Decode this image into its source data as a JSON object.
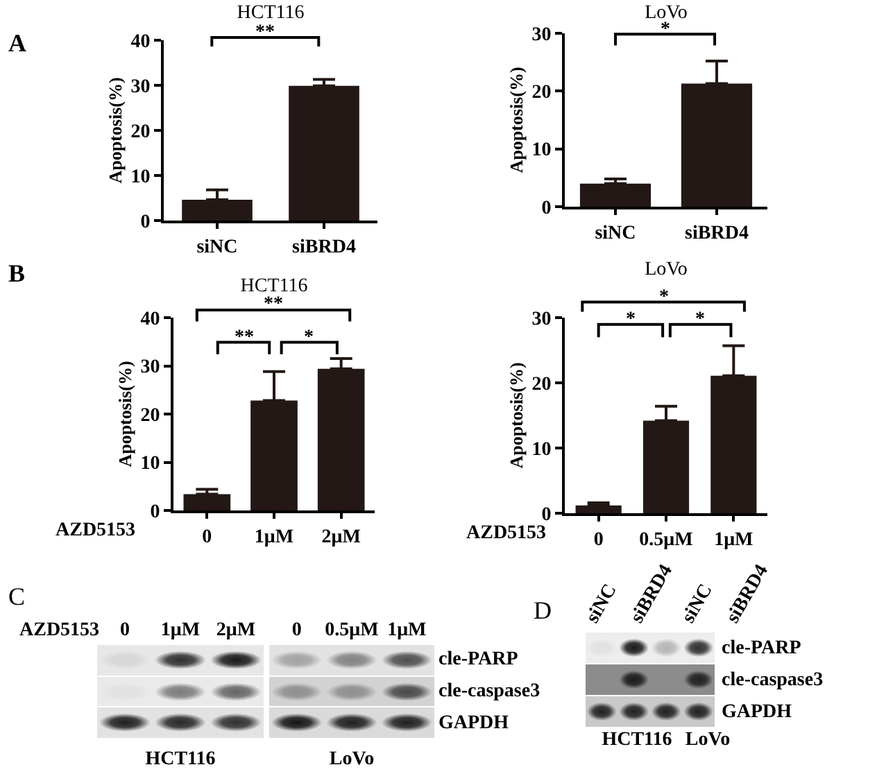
{
  "chart_data": [
    {
      "type": "bar",
      "title": "HCT116",
      "ylabel": "Apoptosis(%)",
      "categories": [
        "siNC",
        "siBRD4"
      ],
      "values": [
        4.6,
        29.9
      ],
      "errors": [
        [
          4.6,
          6.8
        ],
        [
          29.9,
          31.3
        ]
      ],
      "color": "#231815",
      "ylim": [
        0,
        40
      ],
      "yticks": [
        0,
        10,
        20,
        30,
        40
      ],
      "annotations": [
        "A",
        "**"
      ]
    },
    {
      "type": "bar",
      "title": "LoVo",
      "ylabel": "Apoptosis(%)",
      "categories": [
        "siNC",
        "siBRD4"
      ],
      "values": [
        4.0,
        21.3
      ],
      "errors": [
        [
          4.0,
          4.8
        ],
        [
          21.3,
          25.2
        ]
      ],
      "color": "#231815",
      "ylim": [
        0,
        30
      ],
      "yticks": [
        0,
        10,
        20,
        30
      ],
      "annotations": [
        "*"
      ]
    },
    {
      "type": "bar",
      "title": "HCT116",
      "xlabel": "AZD5153",
      "ylabel": "Apoptosis(%)",
      "categories": [
        "0",
        "1μM",
        "2μM"
      ],
      "values": [
        3.4,
        22.8,
        29.4
      ],
      "errors": [
        [
          3.4,
          4.4
        ],
        [
          22.8,
          28.8
        ],
        [
          29.4,
          31.5
        ]
      ],
      "color": "#231815",
      "ylim": [
        0,
        40
      ],
      "yticks": [
        0,
        10,
        20,
        30,
        40
      ],
      "annotations": [
        "B",
        "**",
        "**",
        "*"
      ]
    },
    {
      "type": "bar",
      "title": "LoVo",
      "xlabel": "AZD5153",
      "ylabel": "Apoptosis(%)",
      "categories": [
        "0",
        "0.5μM",
        "1μM"
      ],
      "values": [
        1.2,
        14.2,
        21.1
      ],
      "errors": [
        [
          1.2,
          1.6
        ],
        [
          14.2,
          16.4
        ],
        [
          21.1,
          25.7
        ]
      ],
      "color": "#231815",
      "ylim": [
        0,
        30
      ],
      "yticks": [
        0,
        10,
        20,
        30
      ],
      "annotations": [
        "*",
        "*",
        "*"
      ]
    },
    {
      "type": "other",
      "xlabel": "AZD5153",
      "categories": [
        "0",
        "1μM",
        "2μM",
        "0",
        "0.5μM",
        "1μM"
      ],
      "y_categories": [
        "cle-PARP",
        "cle-caspase3",
        "GAPDH"
      ],
      "annotations": [
        "C",
        "HCT116",
        "LoVo"
      ]
    },
    {
      "type": "other",
      "categories": [
        "siNC",
        "siBRD4",
        "siNC",
        "siBRD4"
      ],
      "y_categories": [
        "cle-PARP",
        "cle-caspase3",
        "GAPDH"
      ],
      "annotations": [
        "D",
        "HCT116",
        "LoVo"
      ]
    }
  ]
}
